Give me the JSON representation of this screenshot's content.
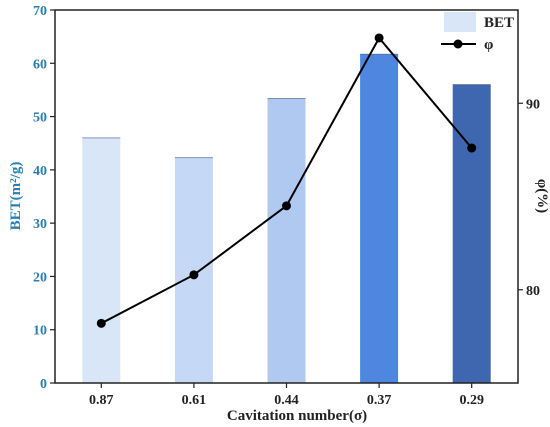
{
  "chart_data": {
    "type": "bar+line",
    "categories": [
      "0.87",
      "0.61",
      "0.44",
      "0.37",
      "0.29"
    ],
    "xlabel": "Cavitation number(σ)",
    "series": [
      {
        "name": "BET",
        "type": "bar",
        "axis": "left",
        "values": [
          46.0,
          42.3,
          53.4,
          61.7,
          56.0
        ],
        "colors": [
          "#d9e6f8",
          "#c5d8f5",
          "#b0c9f0",
          "#4f86e0",
          "#3e67b0"
        ]
      },
      {
        "name": "φ",
        "type": "line",
        "axis": "right",
        "values": [
          78.2,
          80.8,
          84.5,
          93.5,
          87.6
        ],
        "color": "#000000"
      }
    ],
    "left_axis": {
      "label": "BET(m²/g)",
      "ylim": [
        0,
        70
      ],
      "ticks": [
        "0",
        "10",
        "20",
        "30",
        "40",
        "50",
        "60",
        "70"
      ],
      "color": "#2a7fb0"
    },
    "right_axis": {
      "label": "φ(%)",
      "ylim": [
        75,
        95
      ],
      "ticks": [
        "80",
        "90"
      ]
    },
    "legend": {
      "placement": "top-right",
      "items": [
        "BET",
        "φ"
      ]
    },
    "grid": false
  }
}
